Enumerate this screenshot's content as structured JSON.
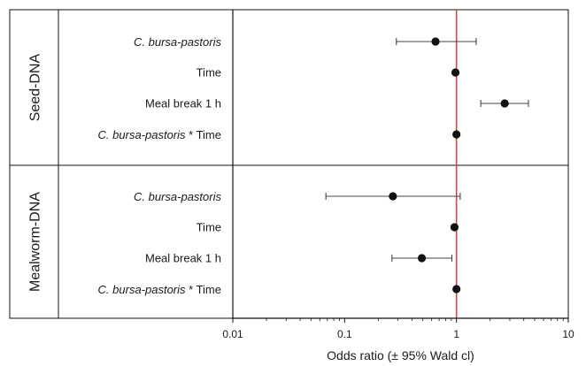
{
  "chart_data": {
    "type": "scatter",
    "subtype": "forest-plot",
    "xlabel": "Odds ratio (± 95% Wald cl)",
    "x_scale": "log",
    "xlim": [
      0.01,
      10
    ],
    "x_ticks": [
      0.01,
      0.1,
      1,
      10
    ],
    "x_tick_labels": [
      "0.01",
      "0.1",
      "1",
      "10"
    ],
    "reference_line": {
      "x": 1,
      "color": "#d04a3f"
    },
    "grid": false,
    "legend": "none",
    "groups": [
      {
        "name": "Seed-DNA",
        "rows": [
          {
            "label": "C. bursa-pastoris",
            "italic_part": "C. bursa-pastoris",
            "or": 0.65,
            "lower": 0.29,
            "upper": 1.5
          },
          {
            "label": "Time",
            "italic_part": "",
            "or": 0.98,
            "lower": 0.96,
            "upper": 1.0
          },
          {
            "label": "Meal break 1 h",
            "italic_part": "",
            "or": 2.7,
            "lower": 1.65,
            "upper": 4.4
          },
          {
            "label": "C. bursa-pastoris * Time",
            "italic_part": "C. bursa-pastoris",
            "or": 1.0,
            "lower": 0.99,
            "upper": 1.01
          }
        ]
      },
      {
        "name": "Mealworm-DNA",
        "rows": [
          {
            "label": "C. bursa-pastoris",
            "italic_part": "C. bursa-pastoris",
            "or": 0.27,
            "lower": 0.068,
            "upper": 1.08
          },
          {
            "label": "Time",
            "italic_part": "",
            "or": 0.96,
            "lower": 0.94,
            "upper": 0.98
          },
          {
            "label": "Meal break 1 h",
            "italic_part": "",
            "or": 0.49,
            "lower": 0.265,
            "upper": 0.91
          },
          {
            "label": "C. bursa-pastoris * Time",
            "italic_part": "C. bursa-pastoris",
            "or": 1.0,
            "lower": 0.99,
            "upper": 1.01
          }
        ]
      }
    ],
    "colors": {
      "point": "#111111",
      "errorbar": "#444444",
      "frame": "#111111",
      "reference": "#d04a3f"
    }
  }
}
